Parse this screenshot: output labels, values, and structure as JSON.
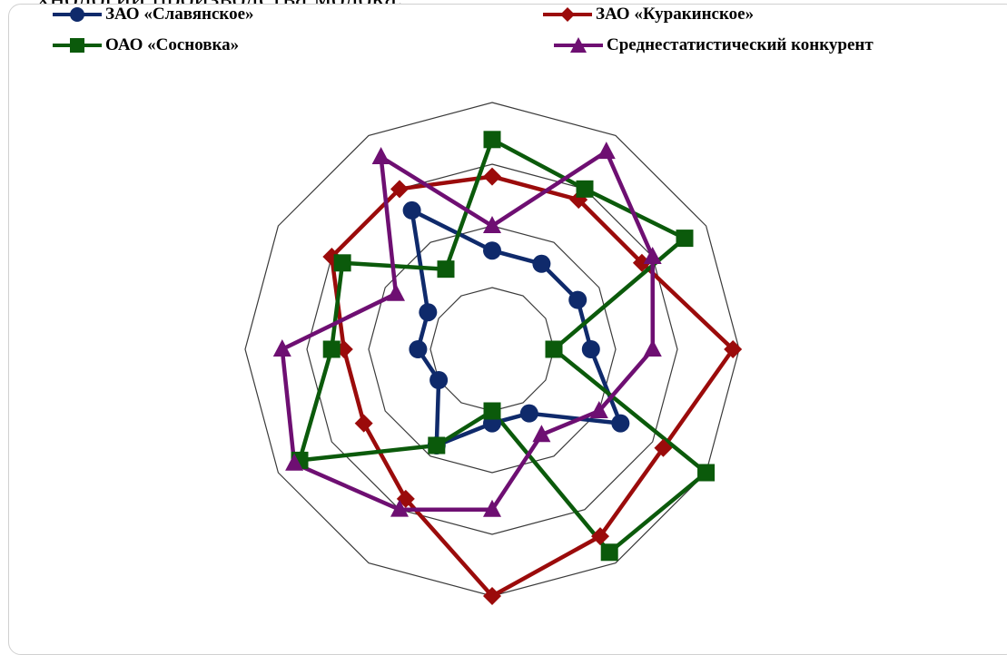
{
  "page_heading": "хнологии производства молока.",
  "chart_data": {
    "type": "radar",
    "title": "",
    "axes_count": 12,
    "rings": 4,
    "rlim": [
      0,
      4
    ],
    "grid": true,
    "legend_position": "top",
    "series": [
      {
        "name": "ЗАО «Славянское»",
        "color": "#0f2a6b",
        "marker": "circle",
        "values": [
          1.6,
          1.6,
          1.6,
          1.6,
          2.4,
          1.2,
          1.2,
          1.8,
          1.0,
          1.2,
          1.2,
          2.6
        ]
      },
      {
        "name": "ЗАО «Куракинское»",
        "color": "#9b0b0b",
        "marker": "diamond",
        "values": [
          2.8,
          2.8,
          2.8,
          3.9,
          3.2,
          3.5,
          4.0,
          2.8,
          2.4,
          2.4,
          3.0,
          3.0
        ]
      },
      {
        "name": "ОАО «Сосновка»",
        "color": "#0b5a0b",
        "marker": "square",
        "values": [
          3.4,
          3.0,
          3.6,
          1.0,
          4.0,
          3.8,
          1.0,
          1.8,
          3.6,
          2.6,
          2.8,
          1.5
        ]
      },
      {
        "name": "Среднестатистический конкурент",
        "color": "#6e0f72",
        "marker": "triangle",
        "values": [
          2.0,
          3.7,
          3.0,
          2.6,
          2.0,
          1.6,
          2.6,
          3.0,
          3.7,
          3.4,
          1.8,
          3.6
        ]
      }
    ]
  }
}
